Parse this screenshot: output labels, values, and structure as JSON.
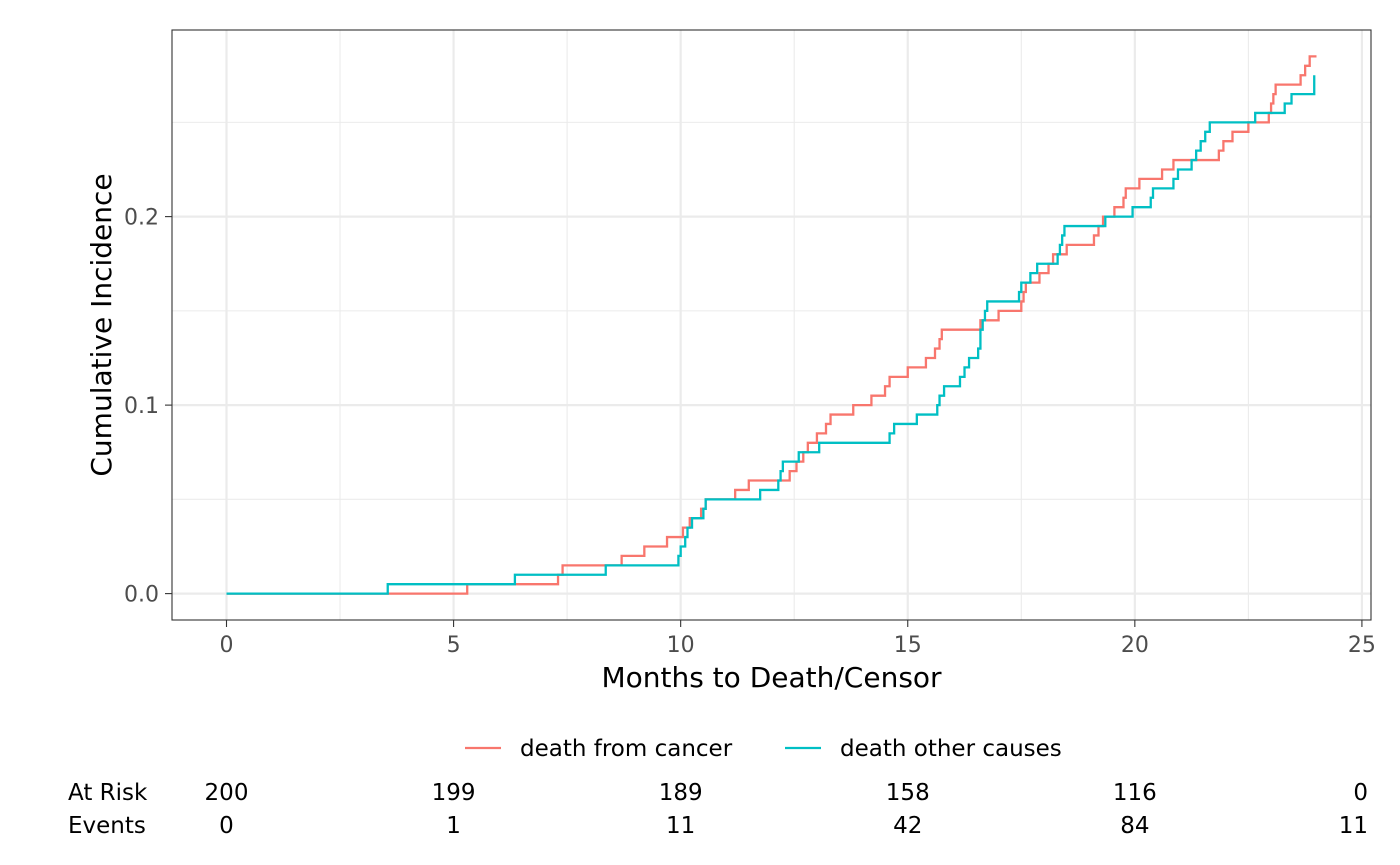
{
  "chart_data": {
    "type": "line",
    "step": true,
    "xlabel": "Months to Death/Censor",
    "ylabel": "Cumulative Incidence",
    "xlim": [
      -1.2,
      25.2
    ],
    "ylim": [
      -0.014,
      0.299
    ],
    "x_ticks": [
      0,
      5,
      10,
      15,
      20,
      25
    ],
    "y_ticks": [
      0.0,
      0.1,
      0.2
    ],
    "y_tick_labels": [
      "0.0",
      "0.1",
      "0.2"
    ],
    "grid": true,
    "legend_position": "bottom",
    "series": [
      {
        "name": "death from cancer",
        "color": "#F8766D",
        "points": [
          [
            0,
            0
          ],
          [
            5.3,
            0.005
          ],
          [
            7.3,
            0.01
          ],
          [
            7.4,
            0.015
          ],
          [
            8.7,
            0.02
          ],
          [
            9.2,
            0.025
          ],
          [
            9.7,
            0.03
          ],
          [
            10.05,
            0.035
          ],
          [
            10.2,
            0.04
          ],
          [
            10.45,
            0.045
          ],
          [
            10.55,
            0.05
          ],
          [
            11.2,
            0.055
          ],
          [
            11.5,
            0.06
          ],
          [
            12.4,
            0.065
          ],
          [
            12.55,
            0.07
          ],
          [
            12.7,
            0.075
          ],
          [
            12.8,
            0.08
          ],
          [
            13.0,
            0.085
          ],
          [
            13.2,
            0.09
          ],
          [
            13.3,
            0.095
          ],
          [
            13.8,
            0.1
          ],
          [
            14.2,
            0.105
          ],
          [
            14.5,
            0.11
          ],
          [
            14.6,
            0.115
          ],
          [
            15.0,
            0.12
          ],
          [
            15.4,
            0.125
          ],
          [
            15.6,
            0.13
          ],
          [
            15.7,
            0.135
          ],
          [
            15.75,
            0.14
          ],
          [
            16.6,
            0.145
          ],
          [
            17.0,
            0.15
          ],
          [
            17.5,
            0.155
          ],
          [
            17.55,
            0.16
          ],
          [
            17.6,
            0.165
          ],
          [
            17.9,
            0.17
          ],
          [
            18.1,
            0.175
          ],
          [
            18.2,
            0.18
          ],
          [
            18.5,
            0.185
          ],
          [
            19.1,
            0.19
          ],
          [
            19.2,
            0.195
          ],
          [
            19.3,
            0.2
          ],
          [
            19.55,
            0.205
          ],
          [
            19.75,
            0.21
          ],
          [
            19.8,
            0.215
          ],
          [
            20.1,
            0.22
          ],
          [
            20.6,
            0.225
          ],
          [
            20.85,
            0.23
          ],
          [
            21.85,
            0.235
          ],
          [
            21.95,
            0.24
          ],
          [
            22.15,
            0.245
          ],
          [
            22.5,
            0.25
          ],
          [
            22.95,
            0.255
          ],
          [
            23.0,
            0.26
          ],
          [
            23.05,
            0.265
          ],
          [
            23.1,
            0.27
          ],
          [
            23.65,
            0.275
          ],
          [
            23.75,
            0.28
          ],
          [
            23.85,
            0.285
          ],
          [
            24.0,
            0.285
          ]
        ]
      },
      {
        "name": "death other causes",
        "color": "#00BFC4",
        "points": [
          [
            0,
            0
          ],
          [
            3.55,
            0.005
          ],
          [
            6.35,
            0.01
          ],
          [
            8.35,
            0.015
          ],
          [
            9.95,
            0.02
          ],
          [
            10.0,
            0.025
          ],
          [
            10.1,
            0.03
          ],
          [
            10.15,
            0.035
          ],
          [
            10.25,
            0.04
          ],
          [
            10.5,
            0.045
          ],
          [
            10.55,
            0.05
          ],
          [
            11.75,
            0.055
          ],
          [
            12.15,
            0.06
          ],
          [
            12.2,
            0.065
          ],
          [
            12.25,
            0.07
          ],
          [
            12.6,
            0.075
          ],
          [
            13.05,
            0.08
          ],
          [
            14.6,
            0.085
          ],
          [
            14.7,
            0.09
          ],
          [
            15.2,
            0.095
          ],
          [
            15.65,
            0.1
          ],
          [
            15.7,
            0.105
          ],
          [
            15.8,
            0.11
          ],
          [
            16.15,
            0.115
          ],
          [
            16.25,
            0.12
          ],
          [
            16.35,
            0.125
          ],
          [
            16.55,
            0.13
          ],
          [
            16.6,
            0.14
          ],
          [
            16.65,
            0.145
          ],
          [
            16.7,
            0.15
          ],
          [
            16.75,
            0.155
          ],
          [
            17.45,
            0.16
          ],
          [
            17.5,
            0.165
          ],
          [
            17.7,
            0.17
          ],
          [
            17.85,
            0.175
          ],
          [
            18.3,
            0.18
          ],
          [
            18.35,
            0.185
          ],
          [
            18.4,
            0.19
          ],
          [
            18.45,
            0.195
          ],
          [
            19.35,
            0.2
          ],
          [
            19.95,
            0.205
          ],
          [
            20.35,
            0.21
          ],
          [
            20.4,
            0.215
          ],
          [
            20.85,
            0.22
          ],
          [
            20.95,
            0.225
          ],
          [
            21.25,
            0.23
          ],
          [
            21.35,
            0.235
          ],
          [
            21.45,
            0.24
          ],
          [
            21.55,
            0.245
          ],
          [
            21.65,
            0.25
          ],
          [
            22.65,
            0.255
          ],
          [
            23.3,
            0.26
          ],
          [
            23.45,
            0.265
          ],
          [
            23.95,
            0.275
          ],
          [
            23.95,
            0.275
          ]
        ]
      }
    ]
  },
  "risk_table": {
    "times": [
      0,
      5,
      10,
      15,
      20,
      25
    ],
    "rows": [
      {
        "label": "At Risk",
        "values": [
          "200",
          "199",
          "189",
          "158",
          "116",
          "0"
        ]
      },
      {
        "label": "Events",
        "values": [
          "0",
          "1",
          "11",
          "42",
          "84",
          "11"
        ]
      }
    ]
  }
}
